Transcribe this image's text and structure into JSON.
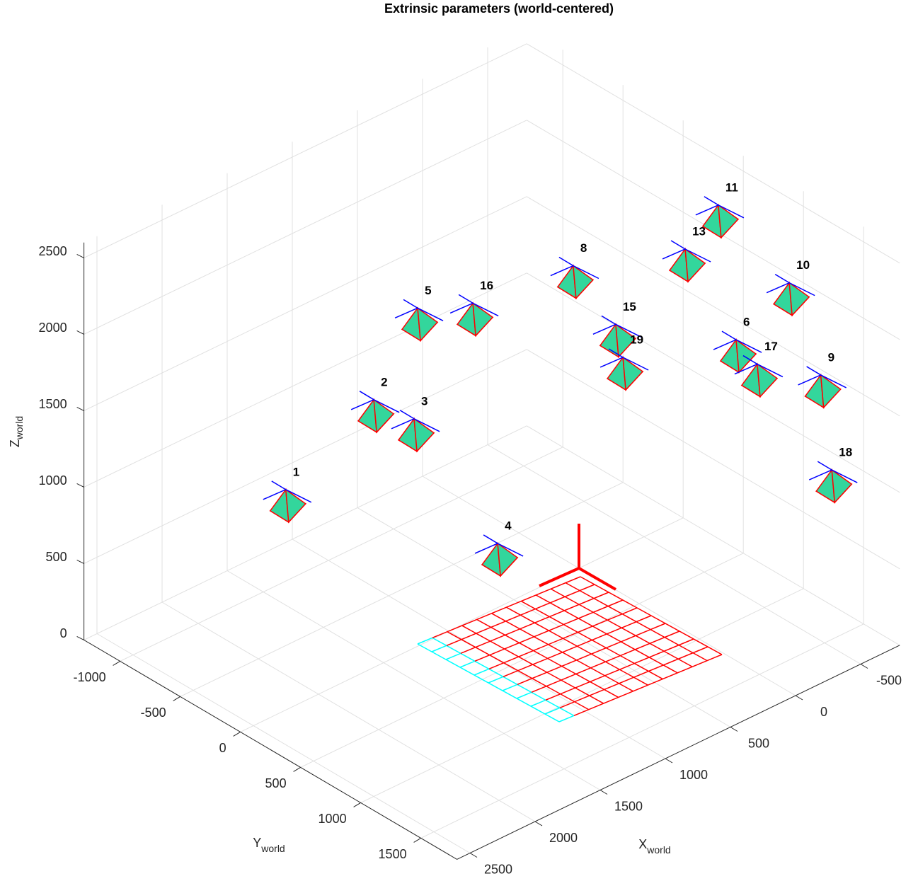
{
  "chart_data": {
    "type": "camera-3d",
    "title": "Extrinsic parameters (world-centered)",
    "xlabel": "X",
    "xlabel_sub": "world",
    "ylabel": "Y",
    "ylabel_sub": "world",
    "zlabel": "Z",
    "zlabel_sub": "world",
    "xlim": [
      -800,
      2600
    ],
    "ylim": [
      -1300,
      1800
    ],
    "zlim": [
      0,
      2600
    ],
    "xticks": [
      -500,
      0,
      500,
      1000,
      1500,
      2000,
      2500
    ],
    "yticks": [
      -1000,
      -500,
      0,
      500,
      1000,
      1500
    ],
    "zticks": [
      0,
      500,
      1000,
      1500,
      2000,
      2500
    ],
    "grid": true,
    "color": "#33d69c",
    "cameras": [
      {
        "name": "1",
        "x": 1986,
        "y": -287,
        "z": 1200
      },
      {
        "name": "2",
        "x": 971,
        "y": -654,
        "z": 1200
      },
      {
        "name": "3",
        "x": 938,
        "y": -355,
        "z": 1200
      },
      {
        "name": "4",
        "x": 1479,
        "y": 925,
        "z": 1200
      },
      {
        "name": "5",
        "x": 568,
        "y": -726,
        "z": 1600
      },
      {
        "name": "16",
        "x": 300,
        "y": -557,
        "z": 1600
      },
      {
        "name": "8",
        "x": -391,
        "y": -471,
        "z": 1600
      },
      {
        "name": "15",
        "x": -150,
        "y": 143,
        "z": 1600
      },
      {
        "name": "19",
        "x": -163,
        "y": 189,
        "z": 1400
      },
      {
        "name": "13",
        "x": -544,
        "y": 294,
        "z": 2000
      },
      {
        "name": "11",
        "x": -780,
        "y": 314,
        "z": 2200
      },
      {
        "name": "10",
        "x": -303,
        "y": 1420,
        "z": 2400
      },
      {
        "name": "6",
        "x": -328,
        "y": 951,
        "z": 1800
      },
      {
        "name": "17",
        "x": -352,
        "y": 1101,
        "z": 1700
      },
      {
        "name": "9",
        "x": -432,
        "y": 1542,
        "z": 1800
      },
      {
        "name": "18",
        "x": -346,
        "y": 1727,
        "z": 1300
      }
    ]
  }
}
